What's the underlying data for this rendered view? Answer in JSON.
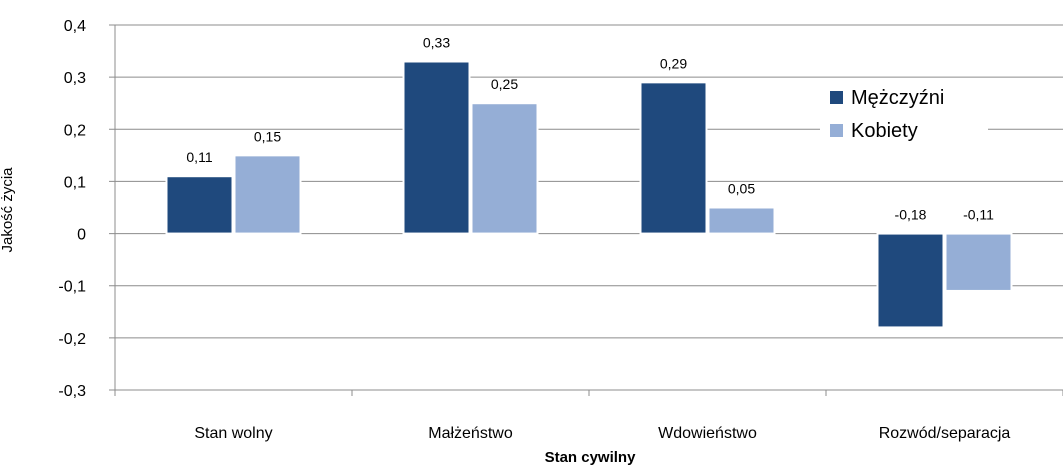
{
  "chart_data": {
    "type": "bar",
    "categories": [
      "Stan wolny",
      "Małżeństwo",
      "Wdowieństwo",
      "Rozwód/separacja"
    ],
    "series": [
      {
        "name": "Mężczyźni",
        "values": [
          0.11,
          0.33,
          0.29,
          -0.18
        ],
        "labels": [
          "0,11",
          "0,33",
          "0,29",
          "-0,18"
        ],
        "color": "#1f497d"
      },
      {
        "name": "Kobiety",
        "values": [
          0.15,
          0.25,
          0.05,
          -0.11
        ],
        "labels": [
          "0,15",
          "0,25",
          "0,05",
          "-0,11"
        ],
        "color": "#95aed6"
      }
    ],
    "xlabel": "Stan cywilny",
    "ylabel": "Jakość życia",
    "ylim": [
      -0.3,
      0.4
    ],
    "yticks": [
      0.4,
      0.3,
      0.2,
      0.1,
      0,
      -0.1,
      -0.2,
      -0.3
    ],
    "ytick_labels": [
      "0,4",
      "0,3",
      "0,2",
      "0,1",
      "0",
      "-0,1",
      "-0,2",
      "-0,3"
    ],
    "grid": true,
    "legend": "right"
  }
}
